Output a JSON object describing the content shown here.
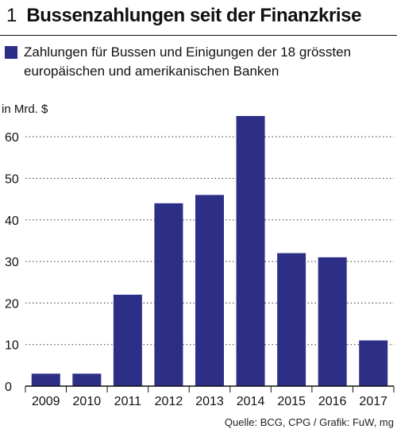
{
  "figure": {
    "number": "1",
    "title": "Bussenzahlungen seit der Finanzkrise"
  },
  "legend": {
    "label": "Zahlungen für Bussen und Einigungen der 18 grössten europäischen und amerikanischen Banken"
  },
  "source": "Quelle: BCG, CPG / Grafik: FuW, mg",
  "colors": {
    "bar": "#2d2f86",
    "axis": "#111111",
    "grid": "#333333"
  },
  "chart_data": {
    "type": "bar",
    "title": "Bussenzahlungen seit der Finanzkrise",
    "xlabel": "",
    "ylabel": "in Mrd. $",
    "categories": [
      "2009",
      "2010",
      "2011",
      "2012",
      "2013",
      "2014",
      "2015",
      "2016",
      "2017"
    ],
    "series": [
      {
        "name": "Zahlungen für Bussen und Einigungen der 18 grössten europäischen und amerikanischen Banken",
        "values": [
          3,
          3,
          22,
          44,
          46,
          65,
          32,
          31,
          11
        ]
      }
    ],
    "ylim": [
      0,
      65
    ],
    "yticks": [
      0,
      10,
      20,
      30,
      40,
      50,
      60
    ],
    "grid": "horizontal dotted",
    "legend_position": "top-left"
  }
}
